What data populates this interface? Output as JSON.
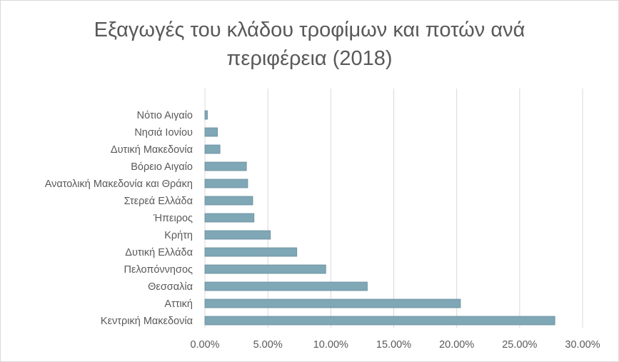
{
  "chart_data": {
    "type": "bar",
    "orientation": "horizontal",
    "title": "Εξαγωγές του κλάδου τροφίμων και ποτών ανά περιφέρεια (2018)",
    "title_lines": [
      "Εξαγωγές του κλάδου τροφίμων και ποτών ανά",
      "περιφέρεια (2018)"
    ],
    "categories": [
      "Νότιο Αιγαίο",
      "Νησιά Ιονίου",
      "Δυτική Μακεδονία",
      "Βόρειο Αιγαίο",
      "Ανατολική Μακεδονία και Θράκη",
      "Στερεά Ελλάδα",
      "Ήπειρος",
      "Κρήτη",
      "Δυτική Ελλάδα",
      "Πελοπόννησος",
      "Θεσσαλία",
      "Αττική",
      "Κεντρική Μακεδονία"
    ],
    "values": [
      0.2,
      1.0,
      1.2,
      3.3,
      3.4,
      3.8,
      3.9,
      5.2,
      7.3,
      9.6,
      12.9,
      20.3,
      27.8
    ],
    "x_ticks": [
      "0.00%",
      "5.00%",
      "10.00%",
      "15.00%",
      "20.00%",
      "25.00%",
      "30.00%"
    ],
    "xlim": [
      0,
      30
    ],
    "xlabel": "",
    "ylabel": "",
    "grid": "vertical",
    "legend": "none",
    "bar_color": "#7fa7b6",
    "bar_edge_color": "#6a8f9d",
    "grid_color": "#d9d9d9",
    "text_color": "#595959"
  }
}
